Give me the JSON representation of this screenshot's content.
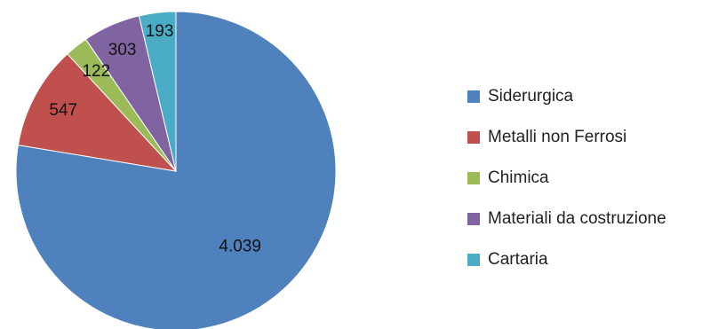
{
  "chart_data": {
    "type": "pie",
    "categories": [
      "Siderurgica",
      "Metalli non Ferrosi",
      "Chimica",
      "Materiali da costruzione",
      "Cartaria"
    ],
    "values": [
      4039,
      547,
      122,
      303,
      193
    ],
    "data_labels": [
      "4.039",
      "547",
      "122",
      "303",
      "193"
    ],
    "colors": [
      "#4F81BD",
      "#C0504D",
      "#9BBB59",
      "#8064A2",
      "#4BACC6"
    ],
    "legend_position": "right",
    "start_angle": "top",
    "direction": "clockwise"
  }
}
